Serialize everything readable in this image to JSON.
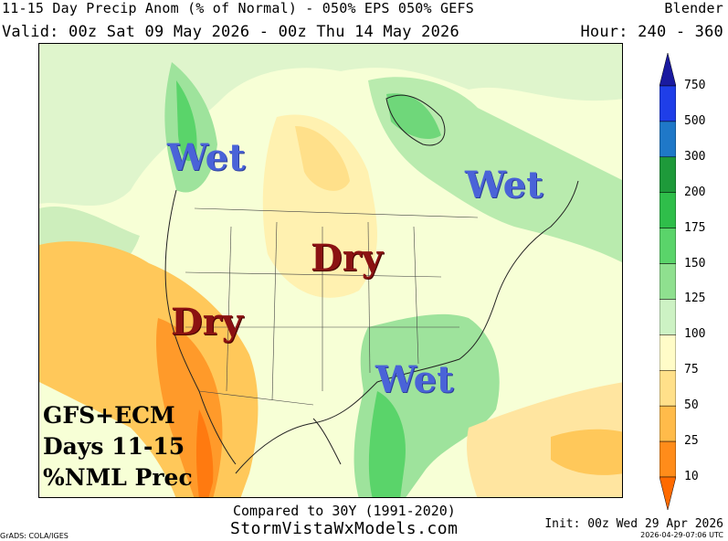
{
  "header": {
    "title": "11-15 Day Precip Anom (% of Normal) - 050% EPS 050% GEFS",
    "model": "Blender",
    "valid": "Valid: 00z Sat 09 May 2026 - 00z Thu 14 May 2026",
    "hour": "Hour: 240 - 360"
  },
  "annotations": {
    "wet_nw": "Wet",
    "wet_ne": "Wet",
    "wet_se": "Wet",
    "dry_central": "Dry",
    "dry_sw": "Dry"
  },
  "note": {
    "line1": "GFS+ECM",
    "line2": "Days 11-15",
    "line3": "%NML Prec"
  },
  "colorbar": {
    "levels": [
      "750",
      "500",
      "300",
      "200",
      "175",
      "150",
      "125",
      "100",
      "75",
      "50",
      "25",
      "10"
    ],
    "colors": [
      "#1a1aa0",
      "#1f3ee8",
      "#1f78c8",
      "#1e9a3a",
      "#2fbe4a",
      "#5ad46a",
      "#8fe08f",
      "#cdf2c4",
      "#fffcc8",
      "#ffe08a",
      "#ffbb4a",
      "#ff8c1a",
      "#ff6a00"
    ]
  },
  "footer": {
    "compared": "Compared to 30Y (1991-2020)",
    "site": "StormVistaWxModels.com",
    "credits": "GrADS: COLA/IGES",
    "init": "Init: 00z Wed 29 Apr 2026",
    "stamp": "2026-04-29-07:06 UTC"
  }
}
